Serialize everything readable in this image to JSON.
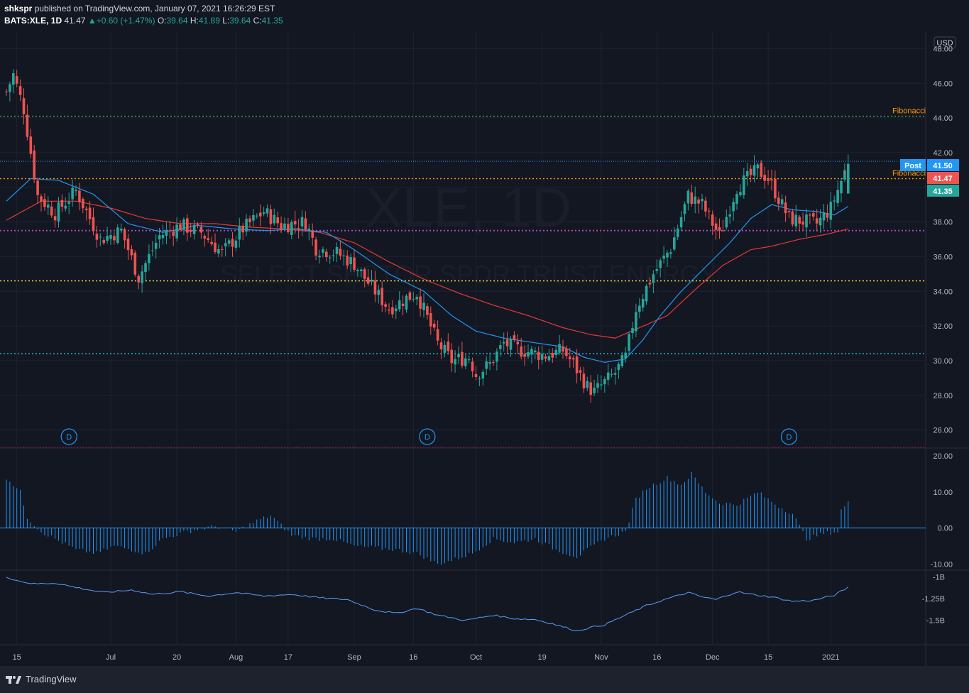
{
  "header": {
    "author": "shkspr",
    "published_text": "published on TradingView.com, January 07, 2021 16:26:29 EST",
    "symbol": "BATS:XLE, 1D",
    "last": "41.47",
    "change": "+0.60 (+1.47%)",
    "o_label": "O:",
    "o_value": "39.64",
    "h_label": "H:",
    "h_value": "41.89",
    "l_label": "L:",
    "l_value": "39.64",
    "c_label": "C:",
    "c_value": "41.35"
  },
  "footer": {
    "brand": "TradingView"
  },
  "chart_data": {
    "type": "candlestick",
    "currency": "USD",
    "watermark_symbol": "XLE, 1D",
    "watermark_name": "SELECT SECTOR SPDR TRUST ENERGY",
    "price_axis": {
      "range": [
        25,
        49
      ],
      "ticks": [
        "48.00",
        "46.00",
        "44.00",
        "42.00",
        "40.00",
        "38.00",
        "36.00",
        "34.00",
        "32.00",
        "30.00",
        "28.00",
        "26.00"
      ]
    },
    "x_labels": [
      "15",
      "Jul",
      "20",
      "Aug",
      "17",
      "Sep",
      "16",
      "Oct",
      "19",
      "Nov",
      "16",
      "Dec",
      "15",
      "2021"
    ],
    "x_label_bar_index": [
      3,
      30,
      49,
      66,
      81,
      100,
      117,
      135,
      154,
      171,
      187,
      203,
      219,
      237
    ],
    "price_tags": [
      {
        "name": "post",
        "label": "Post",
        "value": "41.50",
        "color": "#2196f3"
      },
      {
        "name": "last",
        "label": "",
        "value": "41.47",
        "color": "#ef5350"
      },
      {
        "name": "close",
        "label": "",
        "value": "41.35",
        "color": "#26a69a"
      }
    ],
    "horizontal_lines": [
      {
        "price": 44.1,
        "color": "#4caf50",
        "label": "Fibonacci"
      },
      {
        "price": 40.5,
        "color": "#ff9800",
        "label": "Fibonacci"
      },
      {
        "price": 37.5,
        "color": "#ab47bc",
        "label": ""
      },
      {
        "price": 34.6,
        "color": "#ffeb3b",
        "label": ""
      },
      {
        "price": 30.4,
        "color": "#26c6da",
        "label": ""
      }
    ],
    "dividend_markers": [
      "D",
      "D",
      "D"
    ],
    "dividend_bar_index": [
      18,
      121,
      225
    ],
    "candle_anchors": [
      [
        0,
        45.5
      ],
      [
        2,
        46.5
      ],
      [
        5,
        44.5
      ],
      [
        9,
        39.5
      ],
      [
        14,
        38.5
      ],
      [
        20,
        39.8
      ],
      [
        27,
        37
      ],
      [
        33,
        37.5
      ],
      [
        38,
        34.8
      ],
      [
        44,
        37.2
      ],
      [
        50,
        37.8
      ],
      [
        56,
        37.4
      ],
      [
        62,
        36.2
      ],
      [
        68,
        37.6
      ],
      [
        74,
        38.6
      ],
      [
        79,
        37.8
      ],
      [
        86,
        38
      ],
      [
        89,
        36.5
      ],
      [
        95,
        36.2
      ],
      [
        100,
        35.6
      ],
      [
        104,
        34.5
      ],
      [
        110,
        33
      ],
      [
        115,
        33.6
      ],
      [
        118,
        33.9
      ],
      [
        124,
        31
      ],
      [
        128,
        30
      ],
      [
        133,
        30.2
      ],
      [
        135,
        29.2
      ],
      [
        139,
        29.8
      ],
      [
        143,
        31
      ],
      [
        148,
        30.6
      ],
      [
        155,
        30.3
      ],
      [
        160,
        30.6
      ],
      [
        163,
        29.8
      ],
      [
        167,
        28.5
      ],
      [
        169,
        28.2
      ],
      [
        175,
        29.3
      ],
      [
        178,
        30.2
      ],
      [
        181,
        33
      ],
      [
        186,
        35
      ],
      [
        191,
        36.5
      ],
      [
        196,
        39.5
      ],
      [
        200,
        39
      ],
      [
        205,
        37.2
      ],
      [
        210,
        40
      ],
      [
        216,
        41
      ],
      [
        219,
        40.5
      ],
      [
        225,
        38.2
      ],
      [
        233,
        37.9
      ],
      [
        237,
        38.8
      ],
      [
        241,
        40.9
      ]
    ],
    "ma_fast_anchors": [
      [
        0,
        39.2
      ],
      [
        7,
        40.5
      ],
      [
        15,
        40.4
      ],
      [
        25,
        39.6
      ],
      [
        35,
        37.9
      ],
      [
        45,
        37.4
      ],
      [
        55,
        37.8
      ],
      [
        65,
        37.6
      ],
      [
        75,
        37.5
      ],
      [
        83,
        37.6
      ],
      [
        92,
        37.4
      ],
      [
        100,
        36.4
      ],
      [
        110,
        35
      ],
      [
        120,
        34
      ],
      [
        128,
        32.6
      ],
      [
        135,
        31.7
      ],
      [
        143,
        31.3
      ],
      [
        153,
        31
      ],
      [
        160,
        30.8
      ],
      [
        166,
        30.2
      ],
      [
        172,
        29.9
      ],
      [
        178,
        30.1
      ],
      [
        183,
        31.2
      ],
      [
        188,
        32.6
      ],
      [
        194,
        34
      ],
      [
        200,
        35.2
      ],
      [
        208,
        36.8
      ],
      [
        214,
        38.2
      ],
      [
        220,
        39
      ],
      [
        226,
        38.7
      ],
      [
        233,
        38.6
      ],
      [
        238,
        38.4
      ],
      [
        242,
        38.9
      ]
    ],
    "ma_slow_anchors": [
      [
        0,
        38.1
      ],
      [
        10,
        39.2
      ],
      [
        20,
        39.2
      ],
      [
        30,
        38.8
      ],
      [
        40,
        38.2
      ],
      [
        50,
        37.9
      ],
      [
        60,
        37.9
      ],
      [
        70,
        37.7
      ],
      [
        80,
        37.6
      ],
      [
        90,
        37.4
      ],
      [
        100,
        36.8
      ],
      [
        110,
        35.7
      ],
      [
        120,
        34.7
      ],
      [
        130,
        33.9
      ],
      [
        140,
        33.2
      ],
      [
        150,
        32.6
      ],
      [
        160,
        31.9
      ],
      [
        168,
        31.5
      ],
      [
        175,
        31.3
      ],
      [
        182,
        31.9
      ],
      [
        190,
        32.6
      ],
      [
        198,
        34.1
      ],
      [
        206,
        35.5
      ],
      [
        214,
        36.4
      ],
      [
        220,
        36.6
      ],
      [
        228,
        37
      ],
      [
        236,
        37.3
      ],
      [
        242,
        37.6
      ]
    ],
    "macd_axis": {
      "range": [
        -11.5,
        22
      ],
      "ticks": [
        "20.00",
        "10.00",
        "0.00",
        "-10.00"
      ]
    },
    "macd_anchors": [
      [
        0,
        14
      ],
      [
        4,
        10
      ],
      [
        6,
        3
      ],
      [
        10,
        -1
      ],
      [
        16,
        -4
      ],
      [
        20,
        -6
      ],
      [
        26,
        -7
      ],
      [
        31,
        -5
      ],
      [
        36,
        -6
      ],
      [
        40,
        -7
      ],
      [
        45,
        -3
      ],
      [
        52,
        -1
      ],
      [
        60,
        0.5
      ],
      [
        66,
        -1
      ],
      [
        72,
        2
      ],
      [
        76,
        3.5
      ],
      [
        82,
        -2
      ],
      [
        88,
        -3
      ],
      [
        94,
        -3
      ],
      [
        100,
        -5
      ],
      [
        106,
        -5.5
      ],
      [
        112,
        -6
      ],
      [
        118,
        -7
      ],
      [
        124,
        -10
      ],
      [
        128,
        -9
      ],
      [
        134,
        -7
      ],
      [
        140,
        -3
      ],
      [
        146,
        -4
      ],
      [
        152,
        -3
      ],
      [
        158,
        -6
      ],
      [
        164,
        -8
      ],
      [
        172,
        -3
      ],
      [
        178,
        -1
      ],
      [
        181,
        8
      ],
      [
        184,
        11
      ],
      [
        190,
        14
      ],
      [
        194,
        12
      ],
      [
        197,
        15
      ],
      [
        201,
        10
      ],
      [
        205,
        7
      ],
      [
        210,
        6.5
      ],
      [
        216,
        10
      ],
      [
        222,
        6
      ],
      [
        226,
        4
      ],
      [
        230,
        -3
      ],
      [
        235,
        -1.5
      ],
      [
        239,
        -1
      ],
      [
        240,
        5
      ],
      [
        242,
        7
      ]
    ],
    "obv_axis": {
      "range": [
        -1.78,
        -0.93
      ],
      "ticks": [
        "-1B",
        "-1.25B",
        "-1.5B"
      ]
    },
    "obv_anchors": [
      [
        0,
        -1.0
      ],
      [
        4,
        -1.05
      ],
      [
        8,
        -1.08
      ],
      [
        14,
        -1.07
      ],
      [
        20,
        -1.12
      ],
      [
        28,
        -1.18
      ],
      [
        36,
        -1.15
      ],
      [
        42,
        -1.2
      ],
      [
        50,
        -1.17
      ],
      [
        58,
        -1.22
      ],
      [
        66,
        -1.18
      ],
      [
        74,
        -1.22
      ],
      [
        82,
        -1.2
      ],
      [
        90,
        -1.24
      ],
      [
        98,
        -1.26
      ],
      [
        106,
        -1.38
      ],
      [
        112,
        -1.42
      ],
      [
        118,
        -1.36
      ],
      [
        124,
        -1.44
      ],
      [
        132,
        -1.5
      ],
      [
        140,
        -1.44
      ],
      [
        146,
        -1.48
      ],
      [
        152,
        -1.49
      ],
      [
        158,
        -1.55
      ],
      [
        164,
        -1.62
      ],
      [
        168,
        -1.58
      ],
      [
        172,
        -1.55
      ],
      [
        178,
        -1.44
      ],
      [
        184,
        -1.33
      ],
      [
        190,
        -1.25
      ],
      [
        196,
        -1.18
      ],
      [
        200,
        -1.23
      ],
      [
        204,
        -1.26
      ],
      [
        210,
        -1.17
      ],
      [
        214,
        -1.2
      ],
      [
        220,
        -1.23
      ],
      [
        226,
        -1.28
      ],
      [
        232,
        -1.27
      ],
      [
        238,
        -1.21
      ],
      [
        242,
        -1.12
      ]
    ]
  }
}
